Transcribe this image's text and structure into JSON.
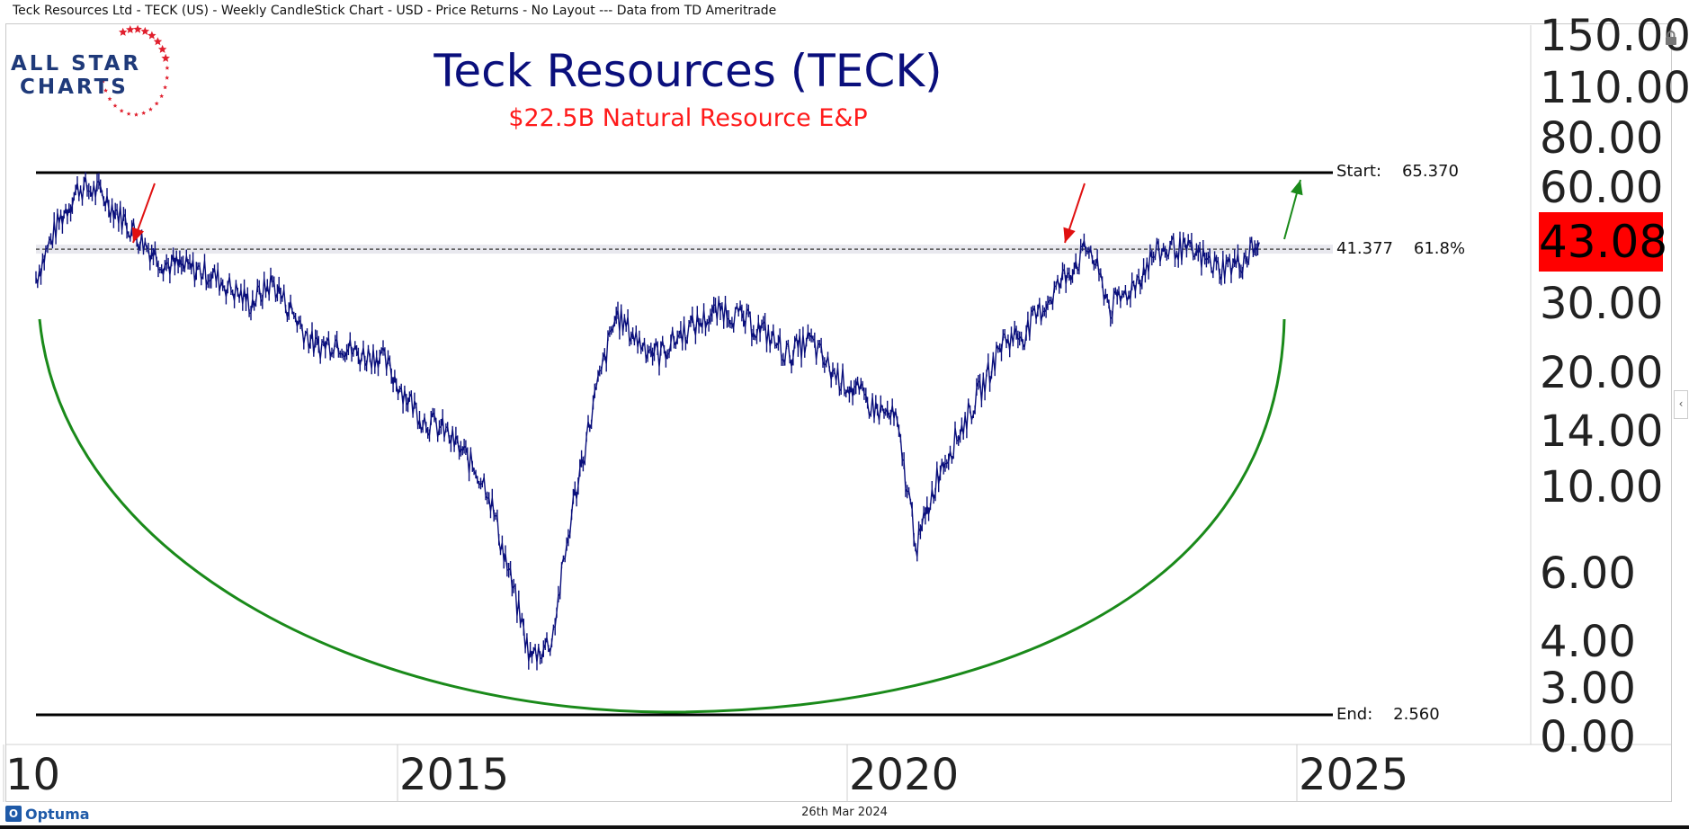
{
  "header": {
    "description": "Teck Resources Ltd  - TECK (US) - Weekly CandleStick Chart - USD - Price Returns - No Layout --- Data from TD Ameritrade"
  },
  "logo": {
    "line1": "ALL STAR",
    "line2": "CHARTS"
  },
  "footer": {
    "date": "26th Mar 2024",
    "brand": "Optuma"
  },
  "colors": {
    "price": "#0a0f7c",
    "title": "#0a0f7c",
    "subtitle": "#ff1a1a",
    "arc": "#1a8a1a",
    "arrow_red": "#e01010",
    "arrow_green": "#1a8a1a",
    "badge": "#ff0000",
    "level_line": "#000000"
  },
  "icons": [
    "lock-icon",
    "collapse-icon",
    "star-icon",
    "optuma-icon"
  ],
  "chart_data": {
    "type": "candlestick",
    "title": "Teck Resources (TECK)",
    "subtitle": "$22.5B Natural Resource E&P",
    "scale": "log",
    "timeframe": "Weekly",
    "last_price": "43.08",
    "x_ticks": [
      "10",
      "2015",
      "2020",
      "2025"
    ],
    "y_ticks": [
      "0.00",
      "3.00",
      "4.00",
      "6.00",
      "10.00",
      "14.00",
      "20.00",
      "30.00",
      "60.00",
      "80.00",
      "110.00",
      "150.00"
    ],
    "levels": [
      {
        "label": "Start:",
        "value": "65.370",
        "price": 65.37
      },
      {
        "label": "41.377",
        "value": "61.8%",
        "price": 41.377
      },
      {
        "label": "End:",
        "value": "2.560",
        "price": 2.56
      }
    ],
    "series": [
      {
        "x": [
          2010.0,
          2010.25,
          2010.5,
          2010.75,
          2011.0,
          2011.25,
          2011.5,
          2011.75,
          2012.0,
          2012.25,
          2012.5,
          2012.75,
          2013.0,
          2013.25,
          2013.5,
          2013.75,
          2014.0,
          2014.25,
          2014.5,
          2014.75,
          2015.0,
          2015.25,
          2015.5,
          2015.75,
          2016.0,
          2016.25,
          2016.5,
          2016.75,
          2017.0,
          2017.25,
          2017.5,
          2017.75,
          2018.0,
          2018.25,
          2018.5,
          2018.75,
          2019.0,
          2019.25,
          2019.5,
          2019.75,
          2020.0,
          2020.25,
          2020.5,
          2020.75,
          2021.0,
          2021.25,
          2021.5,
          2021.75,
          2022.0,
          2022.25,
          2022.5,
          2022.75,
          2023.0,
          2023.25,
          2023.5,
          2023.75,
          2024.0,
          2024.23
        ],
        "close": [
          35,
          48,
          60,
          58,
          50,
          43,
          38,
          37,
          36,
          33,
          30,
          34,
          28,
          23,
          24,
          22,
          22,
          18,
          15,
          14,
          12,
          10,
          6,
          3.6,
          4.0,
          9,
          17,
          28,
          24,
          22,
          25,
          27,
          29,
          27,
          25,
          22,
          24,
          20,
          18,
          16,
          15,
          7,
          11,
          14,
          18,
          24,
          25,
          30,
          36,
          42,
          29,
          33,
          40,
          42,
          40,
          37,
          38,
          43.08
        ]
      }
    ],
    "annotations": [
      {
        "type": "arrow",
        "color": "red",
        "direction": "down",
        "date": 2011.6,
        "price": 41
      },
      {
        "type": "arrow",
        "color": "red",
        "direction": "down",
        "date": 2021.8,
        "price": 42
      },
      {
        "type": "arrow",
        "color": "green",
        "direction": "up",
        "date": 2024.8,
        "price": 62
      },
      {
        "type": "arc",
        "color": "green",
        "shape": "cup",
        "bottom_date": 2017.5
      }
    ]
  }
}
